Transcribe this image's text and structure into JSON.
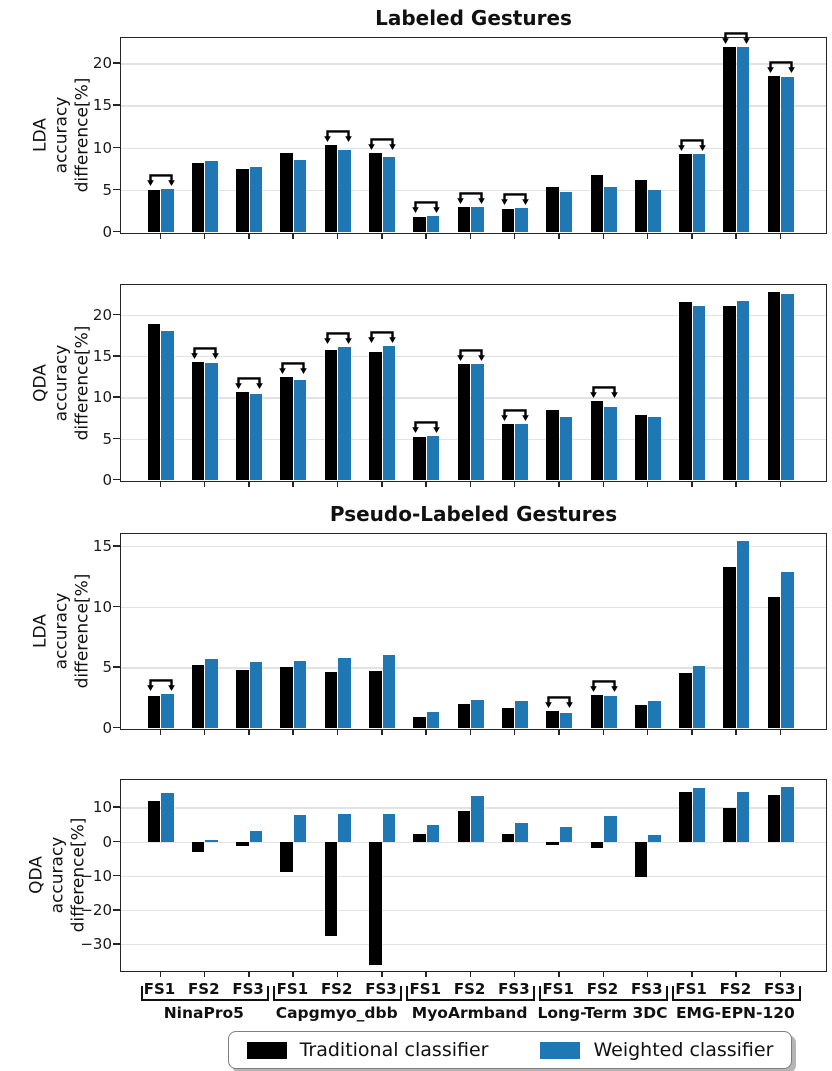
{
  "legend": {
    "items": [
      {
        "label": "Traditional classifier",
        "color": "#000000"
      },
      {
        "label": "Weighted classifier",
        "color": "#1f77b4"
      }
    ]
  },
  "x_axis": {
    "feature_sets": [
      "FS1",
      "FS2",
      "FS3"
    ],
    "datasets": [
      "NinaPro5",
      "Capgmyo_dbb",
      "MyoArmband",
      "Long-Term 3DC",
      "EMG-EPN-120"
    ]
  },
  "chart_data": [
    {
      "type": "bar",
      "title": "Labeled Gestures",
      "ylabel": "LDA\naccuracy\ndifference[%]",
      "yticks": [
        0,
        5,
        10,
        15,
        20
      ],
      "ylim": [
        0,
        23
      ],
      "grid": true,
      "series": [
        {
          "name": "Traditional classifier",
          "color": "#000000",
          "values": [
            5.0,
            8.2,
            7.4,
            9.3,
            10.3,
            9.4,
            1.8,
            3.0,
            2.7,
            5.3,
            6.8,
            6.1,
            9.2,
            21.9,
            18.5
          ]
        },
        {
          "name": "Weighted classifier",
          "color": "#1f77b4",
          "values": [
            5.1,
            8.4,
            7.7,
            8.5,
            9.7,
            8.9,
            1.9,
            2.9,
            2.8,
            4.7,
            5.3,
            5.0,
            9.2,
            21.9,
            18.4
          ]
        }
      ],
      "significance_arrows": [
        0,
        4,
        5,
        6,
        7,
        8,
        12,
        13,
        14
      ]
    },
    {
      "type": "bar",
      "title": "",
      "ylabel": "QDA\naccuracy\ndifference[%]",
      "yticks": [
        0,
        5,
        10,
        15,
        20
      ],
      "ylim": [
        0,
        23.6
      ],
      "grid": true,
      "series": [
        {
          "name": "Traditional classifier",
          "color": "#000000",
          "values": [
            18.9,
            14.3,
            10.6,
            12.5,
            15.7,
            15.5,
            5.2,
            14.0,
            6.7,
            8.5,
            9.5,
            7.9,
            21.6,
            21.0,
            22.8
          ]
        },
        {
          "name": "Weighted classifier",
          "color": "#1f77b4",
          "values": [
            18.0,
            14.2,
            10.4,
            12.1,
            16.1,
            16.2,
            5.3,
            14.0,
            6.8,
            7.6,
            8.8,
            7.6,
            21.0,
            21.7,
            22.5
          ]
        }
      ],
      "significance_arrows": [
        1,
        2,
        3,
        4,
        5,
        6,
        7,
        8,
        10
      ]
    },
    {
      "type": "bar",
      "title": "Pseudo-Labeled Gestures",
      "ylabel": "LDA\naccuracy\ndifference[%]",
      "yticks": [
        0,
        5,
        10,
        15
      ],
      "ylim": [
        0,
        16
      ],
      "grid": true,
      "series": [
        {
          "name": "Traditional classifier",
          "color": "#000000",
          "values": [
            2.6,
            5.2,
            4.8,
            5.0,
            4.6,
            4.7,
            0.9,
            2.0,
            1.6,
            1.4,
            2.7,
            1.9,
            4.5,
            13.3,
            10.8
          ]
        },
        {
          "name": "Weighted classifier",
          "color": "#1f77b4",
          "values": [
            2.8,
            5.7,
            5.4,
            5.5,
            5.8,
            6.0,
            1.3,
            2.3,
            2.2,
            1.2,
            2.6,
            2.2,
            5.1,
            15.4,
            12.9
          ]
        }
      ],
      "significance_arrows": [
        0,
        9,
        10
      ]
    },
    {
      "type": "bar",
      "title": "",
      "ylabel": "QDA\naccuracy\ndifference[%]",
      "yticks": [
        -30,
        -20,
        -10,
        0,
        10
      ],
      "ylim": [
        -37.5,
        18
      ],
      "grid": true,
      "series": [
        {
          "name": "Traditional classifier",
          "color": "#000000",
          "values": [
            12.0,
            -3.0,
            -1.2,
            -9.0,
            -27.5,
            -36.0,
            2.2,
            9.0,
            2.3,
            -1.0,
            -2.0,
            -10.5,
            14.5,
            9.8,
            13.6
          ]
        },
        {
          "name": "Weighted classifier",
          "color": "#1f77b4",
          "values": [
            14.2,
            0.6,
            3.2,
            7.8,
            8.0,
            8.1,
            4.8,
            13.3,
            5.3,
            4.3,
            7.5,
            1.9,
            15.8,
            14.5,
            16.0
          ]
        }
      ],
      "significance_arrows": []
    }
  ]
}
